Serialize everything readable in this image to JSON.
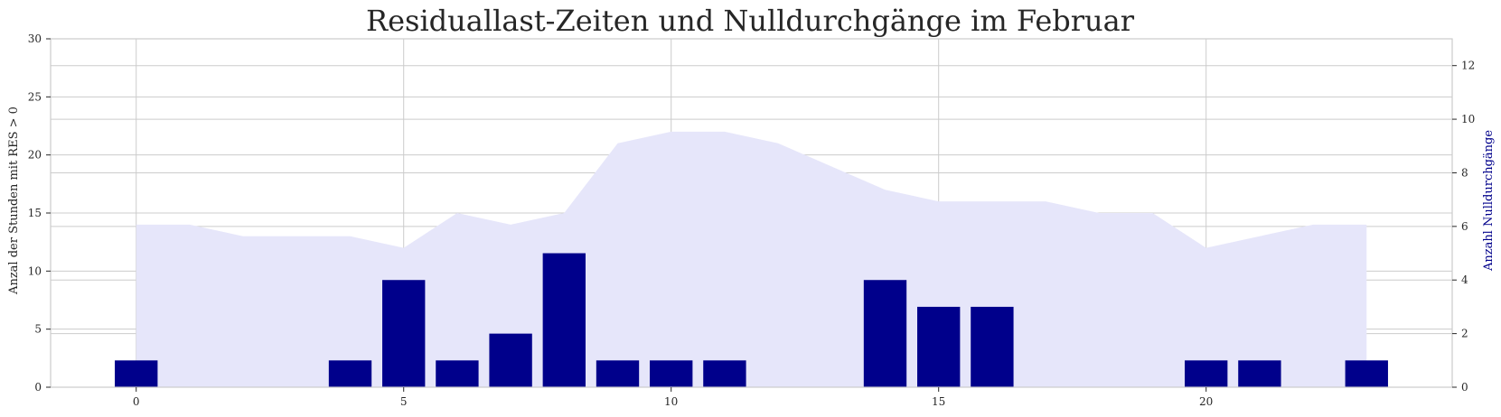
{
  "chart_data": {
    "type": "bar",
    "title": "Residuallast-Zeiten und Nulldurchgänge im Februar",
    "ylabel": "Anzal der Stunden mit RES > 0",
    "ylabel_right": "Anzahl Nulldurchgänge",
    "x": [
      0,
      1,
      2,
      3,
      4,
      5,
      6,
      7,
      8,
      9,
      10,
      11,
      12,
      13,
      14,
      15,
      16,
      17,
      18,
      19,
      20,
      21,
      22,
      23
    ],
    "xlim": [
      -1.6,
      24.6
    ],
    "xticks": [
      0,
      5,
      10,
      15,
      20
    ],
    "ylim": [
      0,
      30
    ],
    "yticks": [
      0,
      5,
      10,
      15,
      20,
      25,
      30
    ],
    "ylim_right": [
      0,
      13
    ],
    "yticks_right": [
      0,
      2,
      4,
      6,
      8,
      10,
      12
    ],
    "grid": true,
    "series": [
      {
        "kind": "area",
        "axis": "left",
        "color": "#e6e6fa",
        "values": [
          14,
          14,
          13,
          13,
          13,
          12,
          15,
          14,
          15,
          21,
          22,
          22,
          21,
          19,
          17,
          16,
          16,
          16,
          15,
          15,
          12,
          13,
          14,
          14
        ]
      },
      {
        "kind": "bar",
        "axis": "right",
        "color": "#00008b",
        "values": [
          1,
          0,
          0,
          0,
          1,
          4,
          1,
          2,
          5,
          1,
          1,
          1,
          0,
          0,
          4,
          3,
          3,
          0,
          0,
          0,
          1,
          1,
          0,
          1
        ]
      }
    ],
    "colors": {
      "right_axis_label": "#00008b"
    }
  }
}
